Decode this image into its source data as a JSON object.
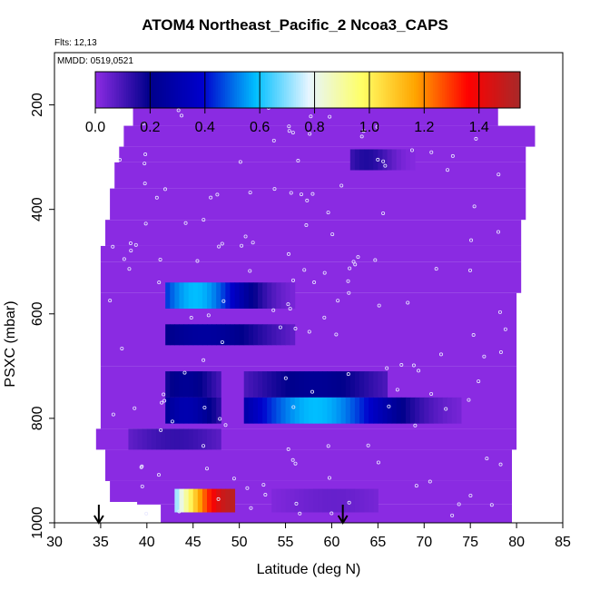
{
  "chart_data": {
    "type": "heatmap",
    "title": "ATOM4 Northeast_Pacific_2 Ncoa3_CAPS",
    "annotations": {
      "flights": "Flts: 12,13",
      "dates": "MMDD: 0519,0521"
    },
    "xlabel": "Latitude (deg N)",
    "ylabel": "PSXC (mbar)",
    "xlim": [
      30,
      85
    ],
    "ylim": [
      1000,
      100
    ],
    "xticks": [
      30,
      35,
      40,
      45,
      50,
      55,
      60,
      65,
      70,
      75,
      80,
      85
    ],
    "yticks": [
      200,
      400,
      600,
      800,
      1000
    ],
    "colorbar": {
      "ticks": [
        0.0,
        0.2,
        0.4,
        0.6,
        0.8,
        1.0,
        1.2,
        1.4
      ],
      "tick_labels": [
        "0.0",
        "0.2",
        "0.4",
        "0.6",
        "0.8",
        "1.0",
        "1.2",
        "1.4"
      ],
      "range": [
        0,
        1.55
      ],
      "colors": [
        "#8a2be2",
        "#00008b",
        "#0000cd",
        "#00bfff",
        "#e6f5ff",
        "#ffff66",
        "#ffa500",
        "#ff0000",
        "#a52a2a"
      ]
    },
    "background_value": 0.0,
    "background_color": "#8a2be2",
    "arrows_latitude": [
      34.8,
      61.2
    ],
    "curtain_columns": [
      {
        "lat0": 35.0,
        "lat1": 36.0,
        "p_top": 960,
        "p_bot": 1000,
        "blank": true
      },
      {
        "lat0": 41.5,
        "lat1": 81.0,
        "p_top": 975,
        "p_bot": 1000
      }
    ],
    "coverage": [
      {
        "lat0": 38.5,
        "lat1": 78.0,
        "p_top": 170,
        "p_bot": 240
      },
      {
        "lat0": 37.5,
        "lat1": 82.0,
        "p_top": 240,
        "p_bot": 280
      },
      {
        "lat0": 37.0,
        "lat1": 81.0,
        "p_top": 280,
        "p_bot": 310
      },
      {
        "lat0": 36.5,
        "lat1": 81.0,
        "p_top": 310,
        "p_bot": 360
      },
      {
        "lat0": 36.0,
        "lat1": 81.0,
        "p_top": 360,
        "p_bot": 420
      },
      {
        "lat0": 35.5,
        "lat1": 80.5,
        "p_top": 420,
        "p_bot": 470
      },
      {
        "lat0": 35.0,
        "lat1": 80.5,
        "p_top": 470,
        "p_bot": 500
      },
      {
        "lat0": 35.0,
        "lat1": 80.5,
        "p_top": 500,
        "p_bot": 560
      },
      {
        "lat0": 35.0,
        "lat1": 80.0,
        "p_top": 560,
        "p_bot": 700
      },
      {
        "lat0": 35.0,
        "lat1": 80.0,
        "p_top": 700,
        "p_bot": 820
      },
      {
        "lat0": 34.5,
        "lat1": 80.0,
        "p_top": 820,
        "p_bot": 860
      },
      {
        "lat0": 35.5,
        "lat1": 79.5,
        "p_top": 860,
        "p_bot": 920
      },
      {
        "lat0": 36.0,
        "lat1": 79.5,
        "p_top": 920,
        "p_bot": 965
      },
      {
        "lat0": 41.5,
        "lat1": 79.5,
        "p_top": 965,
        "p_bot": 1000
      }
    ],
    "features": [
      {
        "lat0": 62.0,
        "lat1": 69.0,
        "p_top": 285,
        "p_bot": 325,
        "peak": 0.15,
        "peak_lat": 63.5,
        "spread": 3.0
      },
      {
        "lat0": 42.0,
        "lat1": 56.0,
        "p_top": 540,
        "p_bot": 590,
        "peak": 0.58,
        "peak_lat": 45.0,
        "spread": 6.0
      },
      {
        "lat0": 42.0,
        "lat1": 56.0,
        "p_top": 620,
        "p_bot": 660,
        "peak": 0.25,
        "peak_lat": 46.0,
        "spread": 8.0
      },
      {
        "lat0": 42.0,
        "lat1": 48.0,
        "p_top": 710,
        "p_bot": 760,
        "peak": 0.22,
        "peak_lat": 44.0,
        "spread": 4.0
      },
      {
        "lat0": 50.5,
        "lat1": 66.0,
        "p_top": 710,
        "p_bot": 760,
        "peak": 0.22,
        "peak_lat": 58.0,
        "spread": 8.0
      },
      {
        "lat0": 42.0,
        "lat1": 48.0,
        "p_top": 760,
        "p_bot": 810,
        "peak": 0.3,
        "peak_lat": 44.0,
        "spread": 4.0
      },
      {
        "lat0": 50.5,
        "lat1": 74.0,
        "p_top": 760,
        "p_bot": 810,
        "peak": 0.58,
        "peak_lat": 58.0,
        "spread": 9.0
      },
      {
        "lat0": 38.0,
        "lat1": 48.0,
        "p_top": 820,
        "p_bot": 860,
        "peak": 0.12,
        "peak_lat": 43.0,
        "spread": 6.0
      },
      {
        "lat0": 43.0,
        "lat1": 49.5,
        "p_top": 935,
        "p_bot": 980,
        "peak": 1.5,
        "peak_lat": 49.0,
        "spread": 7.0
      },
      {
        "lat0": 53.5,
        "lat1": 65.0,
        "p_top": 935,
        "p_bot": 980,
        "peak": 0.05,
        "peak_lat": 60.0,
        "spread": 6.0
      }
    ]
  }
}
